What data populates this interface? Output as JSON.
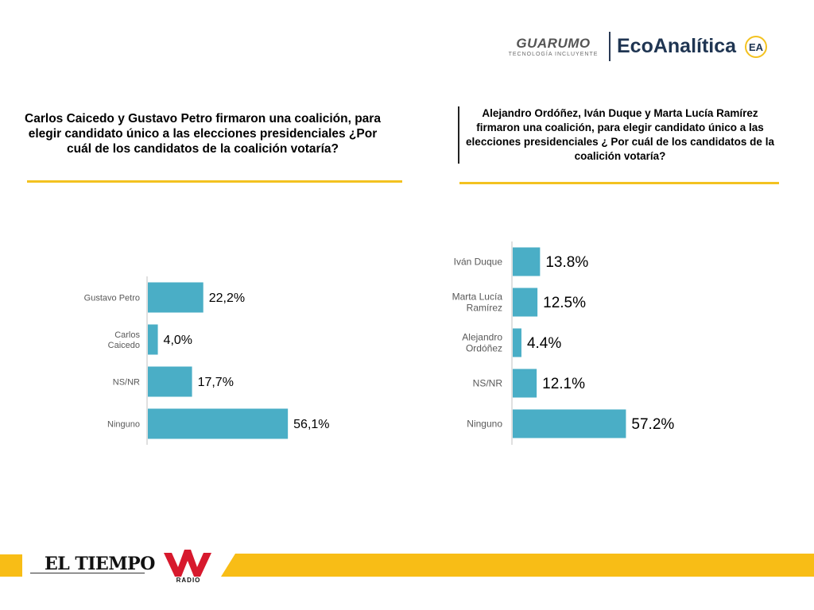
{
  "logos": {
    "guarumo": "GUARUMO",
    "guarumo_tagline": "TECNOLOGÍA INCLUYENTE",
    "ecoanalitica": "EcoAnalítica",
    "ecoanalitica_mark": "EA",
    "el_tiempo": "EL TIEMPO",
    "w_radio": "W RADIO"
  },
  "colors": {
    "bar": "#4aaec6",
    "accent_rule": "#f3c220",
    "footer": "#f8bd16",
    "axis": "#c0c0c0",
    "category_label": "#595959",
    "value_label": "#000000"
  },
  "chart_data": [
    {
      "type": "bar",
      "orientation": "horizontal",
      "title": "Carlos Caicedo y Gustavo Petro firmaron una coalición, para elegir candidato único a las elecciones presidenciales ¿Por cuál de los candidatos de la coalición votaría?",
      "categories": [
        "Gustavo Petro",
        "Carlos Caicedo",
        "NS/NR",
        "Ninguno"
      ],
      "values": [
        22.2,
        4.0,
        17.7,
        56.1
      ],
      "value_labels": [
        "22,2%",
        "4,0%",
        "17,7%",
        "56,1%"
      ],
      "xlim": [
        0,
        100
      ],
      "unit": "%",
      "grid": false,
      "legend": "none"
    },
    {
      "type": "bar",
      "orientation": "horizontal",
      "title": "Alejandro Ordóñez, Iván Duque y Marta Lucía Ramírez firmaron una coalición, para elegir candidato único a las elecciones presidenciales ¿ Por cuál de los candidatos de la coalición votaría?",
      "categories": [
        "Iván Duque",
        "Marta Lucía Ramírez",
        "Alejandro Ordóñez",
        "NS/NR",
        "Ninguno"
      ],
      "values": [
        13.8,
        12.5,
        4.4,
        12.1,
        57.2
      ],
      "value_labels": [
        "13.8%",
        "12.5%",
        "4.4%",
        "12.1%",
        "57.2%"
      ],
      "xlim": [
        0,
        100
      ],
      "unit": "%",
      "grid": false,
      "legend": "none"
    }
  ]
}
